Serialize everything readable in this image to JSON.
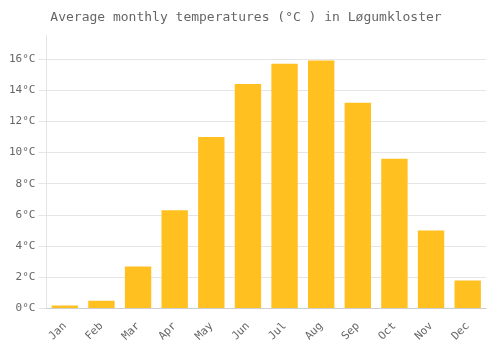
{
  "chart_data": {
    "type": "bar",
    "title": "Average monthly temperatures (°C ) in Løgumkloster",
    "categories": [
      "Jan",
      "Feb",
      "Mar",
      "Apr",
      "May",
      "Jun",
      "Jul",
      "Aug",
      "Sep",
      "Oct",
      "Nov",
      "Dec"
    ],
    "values": [
      0.2,
      0.5,
      2.7,
      6.3,
      11.0,
      14.4,
      15.7,
      15.9,
      13.2,
      9.6,
      5.0,
      1.8
    ],
    "color": "#FFC020",
    "ylim": [
      0,
      17.5
    ],
    "yticks": [
      {
        "value": 0,
        "label": "0°C"
      },
      {
        "value": 2,
        "label": "2°C"
      },
      {
        "value": 4,
        "label": "4°C"
      },
      {
        "value": 6,
        "label": "6°C"
      },
      {
        "value": 8,
        "label": "8°C"
      },
      {
        "value": 10,
        "label": "10°C"
      },
      {
        "value": 12,
        "label": "12°C"
      },
      {
        "value": 14,
        "label": "14°C"
      },
      {
        "value": 16,
        "label": "16°C"
      }
    ],
    "grid": true
  }
}
